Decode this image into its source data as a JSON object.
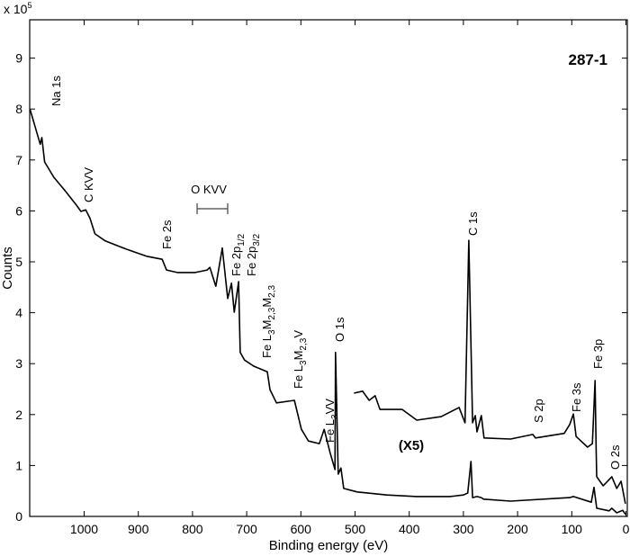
{
  "chart_data": {
    "type": "line",
    "title": "",
    "xlabel": "Binding energy (eV)",
    "ylabel": "Counts",
    "y_multiplier_label": {
      "base": "x 10",
      "exp": "5"
    },
    "xlim": [
      1100,
      0
    ],
    "x_reversed": true,
    "ylim": [
      0,
      9.75
    ],
    "grid": false,
    "x_ticks": [
      1000,
      900,
      800,
      700,
      600,
      500,
      400,
      300,
      200,
      100,
      0
    ],
    "y_ticks": [
      0,
      1,
      2,
      3,
      4,
      5,
      6,
      7,
      8,
      9
    ],
    "sample_label": "287-1",
    "scale_label": "(X5)",
    "line_color": "#000000",
    "series": [
      {
        "x": [
          1100,
          1081,
          1078,
          1073,
          1056,
          1034,
          1014,
          1006,
          997,
          989,
          980,
          961,
          923,
          885,
          856,
          848,
          828,
          795,
          773,
          768,
          757,
          745,
          735,
          728,
          723,
          715,
          712,
          704,
          687,
          662,
          657,
          645,
          612,
          599,
          586,
          566,
          557,
          546,
          537,
          536,
          531,
          526,
          521,
          496,
          441,
          386,
          325,
          300,
          292,
          286,
          283,
          275,
          267,
          263,
          213,
          104,
          97,
          64,
          59,
          54,
          31,
          26,
          17,
          6,
          1
        ],
        "y": [
          8.0,
          7.31,
          7.44,
          6.96,
          6.66,
          6.38,
          6.11,
          5.99,
          6.02,
          5.85,
          5.55,
          5.41,
          5.25,
          5.11,
          5.05,
          4.84,
          4.79,
          4.79,
          4.84,
          4.89,
          4.52,
          5.27,
          4.28,
          4.58,
          4.01,
          4.61,
          3.22,
          3.07,
          2.95,
          2.84,
          2.49,
          2.23,
          2.28,
          1.71,
          1.48,
          1.43,
          1.71,
          1.25,
          0.92,
          3.22,
          0.83,
          0.95,
          0.55,
          0.48,
          0.42,
          0.39,
          0.39,
          0.42,
          0.46,
          1.08,
          0.37,
          0.39,
          0.37,
          0.34,
          0.3,
          0.37,
          0.39,
          0.28,
          0.57,
          0.16,
          0.11,
          0.16,
          0.07,
          0.12,
          0.04
        ]
      },
      {
        "x": [
          502,
          486,
          474,
          463,
          454,
          413,
          386,
          341,
          308,
          297,
          290,
          283,
          278,
          275,
          267,
          262,
          213,
          172,
          167,
          114,
          104,
          97,
          92,
          71,
          62,
          57,
          55,
          54,
          42,
          26,
          17,
          9,
          1
        ],
        "y": [
          2.42,
          2.46,
          2.28,
          2.37,
          2.1,
          2.1,
          1.89,
          1.96,
          2.14,
          1.84,
          5.42,
          1.84,
          1.98,
          1.66,
          1.98,
          1.54,
          1.52,
          1.61,
          1.54,
          1.63,
          1.8,
          2.01,
          1.57,
          1.36,
          1.43,
          2.67,
          1.31,
          0.78,
          0.6,
          0.78,
          0.55,
          0.69,
          0.25
        ]
      }
    ],
    "annotations": [
      {
        "name": "na-1s",
        "parts": [
          [
            "Na 1s",
            ""
          ]
        ]
      },
      {
        "name": "c-kvv",
        "parts": [
          [
            "C KVV",
            ""
          ]
        ]
      },
      {
        "name": "fe-2s",
        "parts": [
          [
            "Fe 2s",
            ""
          ]
        ]
      },
      {
        "name": "fe-2p12",
        "parts": [
          [
            "Fe 2p",
            ""
          ],
          [
            "1/2",
            "sub"
          ]
        ]
      },
      {
        "name": "fe-2p32",
        "parts": [
          [
            "Fe 2p",
            ""
          ],
          [
            "3/2",
            "sub"
          ]
        ]
      },
      {
        "name": "fe-l3m23m23",
        "parts": [
          [
            "Fe L",
            ""
          ],
          [
            "3",
            "sub"
          ],
          [
            "M",
            ""
          ],
          [
            "2,3",
            "sub"
          ],
          [
            "M",
            ""
          ],
          [
            "2,3",
            "sub"
          ]
        ]
      },
      {
        "name": "fe-l3m23v",
        "parts": [
          [
            "Fe L",
            ""
          ],
          [
            "3",
            "sub"
          ],
          [
            "M",
            ""
          ],
          [
            "2,3",
            "sub"
          ],
          [
            "V",
            ""
          ]
        ]
      },
      {
        "name": "o-1s",
        "parts": [
          [
            "O 1s",
            ""
          ]
        ]
      },
      {
        "name": "fe-l3vv",
        "parts": [
          [
            "Fe L",
            ""
          ],
          [
            "3",
            "sub"
          ],
          [
            "VV",
            ""
          ]
        ]
      },
      {
        "name": "c-1s",
        "parts": [
          [
            "C 1s",
            ""
          ]
        ]
      },
      {
        "name": "s-2p",
        "parts": [
          [
            "S 2p",
            ""
          ]
        ]
      },
      {
        "name": "fe-3s",
        "parts": [
          [
            "Fe 3s",
            ""
          ]
        ]
      },
      {
        "name": "fe-3p",
        "parts": [
          [
            "Fe 3p",
            ""
          ]
        ]
      },
      {
        "name": "o-2s",
        "parts": [
          [
            "O 2s",
            ""
          ]
        ]
      }
    ],
    "o_kvv_label": "O KVV"
  }
}
